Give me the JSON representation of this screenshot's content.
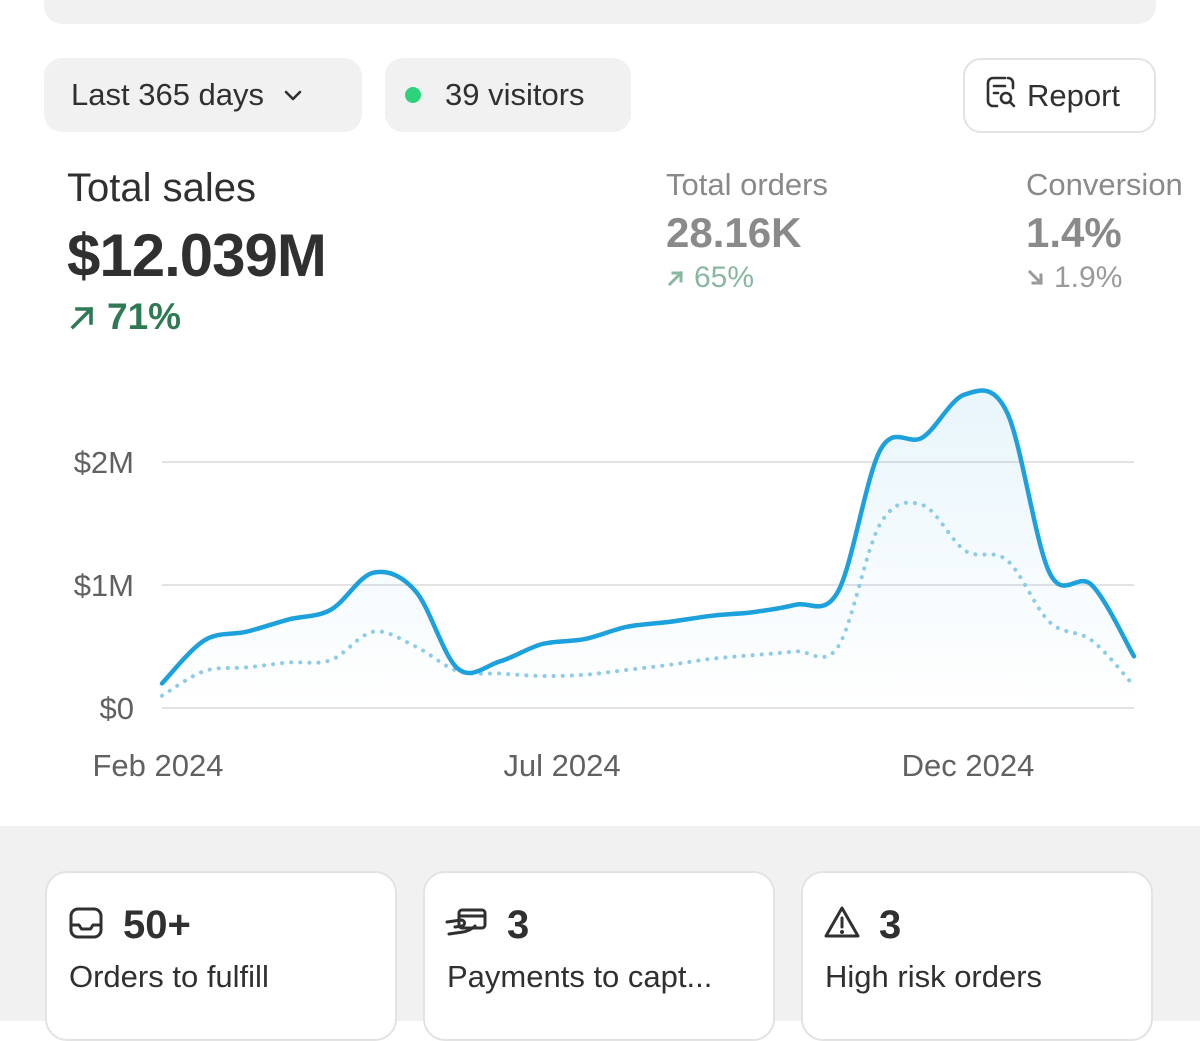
{
  "toolbar": {
    "period_label": "Last 365 days",
    "visitors_label": "39 visitors",
    "report_label": "Report"
  },
  "metrics": {
    "total_sales": {
      "label": "Total sales",
      "value": "$12.039M",
      "delta": "71%"
    },
    "total_orders": {
      "label": "Total orders",
      "value": "28.16K",
      "delta": "65%"
    },
    "conversion": {
      "label": "Conversion",
      "value": "1.4%",
      "delta": "1.9%"
    }
  },
  "chart_data": {
    "type": "line",
    "title": "Total sales",
    "y_ticks": [
      "$0",
      "$1M",
      "$2M"
    ],
    "x_ticks": [
      "Feb 2024",
      "Jul 2024",
      "Dec 2024"
    ],
    "ylim": [
      0,
      3000000
    ],
    "series": [
      {
        "name": "current",
        "style": "solid",
        "values": [
          0.2,
          0.55,
          0.62,
          0.72,
          0.8,
          1.1,
          0.95,
          0.32,
          0.38,
          0.52,
          0.56,
          0.66,
          0.7,
          0.75,
          0.78,
          0.84,
          0.95,
          2.1,
          2.2,
          2.55,
          2.4,
          1.1,
          1.0,
          0.42
        ]
      },
      {
        "name": "previous",
        "style": "dotted",
        "values": [
          0.1,
          0.3,
          0.33,
          0.37,
          0.39,
          0.62,
          0.5,
          0.3,
          0.28,
          0.26,
          0.27,
          0.31,
          0.35,
          0.4,
          0.43,
          0.46,
          0.5,
          1.5,
          1.65,
          1.28,
          1.2,
          0.7,
          0.55,
          0.18
        ]
      }
    ]
  },
  "cards": [
    {
      "count": "50+",
      "label": "Orders to fulfill",
      "icon": "inbox-icon"
    },
    {
      "count": "3",
      "label": "Payments to capt...",
      "icon": "payment-hand-icon"
    },
    {
      "count": "3",
      "label": "High risk orders",
      "icon": "warning-icon"
    }
  ],
  "colors": {
    "accent_line": "#1da1dc",
    "positive": "#2f7a55",
    "visitor_dot": "#2fd27c"
  }
}
